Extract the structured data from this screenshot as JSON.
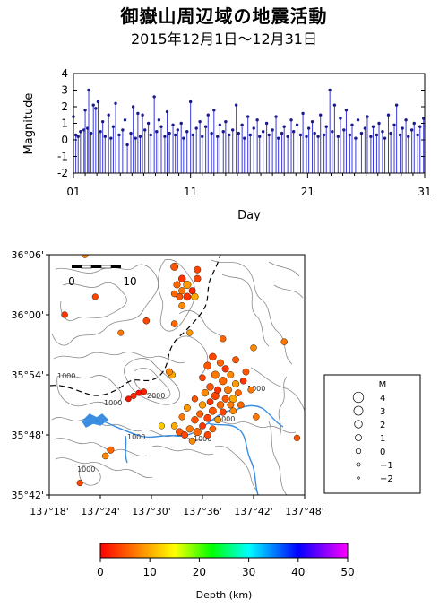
{
  "title": "御嶽山周辺域の地震活動",
  "subtitle": "2015年12月1日～12月31日",
  "chart_data": {
    "type": "bar",
    "ylabel": "Magnitude",
    "xlabel": "Day",
    "xlim": [
      1,
      31
    ],
    "ylim": [
      -2,
      4
    ],
    "y_ticks": [
      "-2",
      "-1",
      "0",
      "1",
      "2",
      "3",
      "4"
    ],
    "x_ticks": [
      "01",
      "11",
      "21",
      "31"
    ],
    "events": [
      {
        "day": 1.0,
        "mag": 1.4
      },
      {
        "day": 1.2,
        "mag": 0.3
      },
      {
        "day": 1.4,
        "mag": 0.2
      },
      {
        "day": 1.6,
        "mag": 0.5
      },
      {
        "day": 1.9,
        "mag": 0.6
      },
      {
        "day": 2.0,
        "mag": 1.8
      },
      {
        "day": 2.2,
        "mag": 0.7
      },
      {
        "day": 2.3,
        "mag": 3.0
      },
      {
        "day": 2.5,
        "mag": 0.4
      },
      {
        "day": 2.7,
        "mag": 2.1
      },
      {
        "day": 2.9,
        "mag": 1.9
      },
      {
        "day": 3.1,
        "mag": 2.3
      },
      {
        "day": 3.3,
        "mag": 0.5
      },
      {
        "day": 3.5,
        "mag": 1.1
      },
      {
        "day": 3.7,
        "mag": 0.2
      },
      {
        "day": 4.0,
        "mag": 1.5
      },
      {
        "day": 4.2,
        "mag": 0.1
      },
      {
        "day": 4.4,
        "mag": 0.8
      },
      {
        "day": 4.6,
        "mag": 2.2
      },
      {
        "day": 4.9,
        "mag": 0.3
      },
      {
        "day": 5.2,
        "mag": 0.6
      },
      {
        "day": 5.4,
        "mag": 1.2
      },
      {
        "day": 5.6,
        "mag": -0.3
      },
      {
        "day": 5.9,
        "mag": 0.4
      },
      {
        "day": 6.1,
        "mag": 2.0
      },
      {
        "day": 6.3,
        "mag": 0.1
      },
      {
        "day": 6.5,
        "mag": 1.6
      },
      {
        "day": 6.7,
        "mag": 0.2
      },
      {
        "day": 6.9,
        "mag": 1.5
      },
      {
        "day": 7.1,
        "mag": 0.6
      },
      {
        "day": 7.4,
        "mag": 1.0
      },
      {
        "day": 7.6,
        "mag": 0.3
      },
      {
        "day": 7.9,
        "mag": 2.6
      },
      {
        "day": 8.1,
        "mag": 0.5
      },
      {
        "day": 8.3,
        "mag": 1.2
      },
      {
        "day": 8.5,
        "mag": 0.8
      },
      {
        "day": 8.8,
        "mag": 0.2
      },
      {
        "day": 9.0,
        "mag": 1.7
      },
      {
        "day": 9.2,
        "mag": 0.4
      },
      {
        "day": 9.5,
        "mag": 0.9
      },
      {
        "day": 9.7,
        "mag": 0.3
      },
      {
        "day": 9.9,
        "mag": 0.6
      },
      {
        "day": 10.2,
        "mag": 1.0
      },
      {
        "day": 10.4,
        "mag": 0.1
      },
      {
        "day": 10.7,
        "mag": 0.5
      },
      {
        "day": 11.0,
        "mag": 2.3
      },
      {
        "day": 11.2,
        "mag": 0.3
      },
      {
        "day": 11.5,
        "mag": 0.7
      },
      {
        "day": 11.8,
        "mag": 1.1
      },
      {
        "day": 12.0,
        "mag": 0.2
      },
      {
        "day": 12.3,
        "mag": 0.8
      },
      {
        "day": 12.5,
        "mag": 1.5
      },
      {
        "day": 12.8,
        "mag": 0.4
      },
      {
        "day": 13.0,
        "mag": 1.8
      },
      {
        "day": 13.3,
        "mag": 0.2
      },
      {
        "day": 13.5,
        "mag": 0.9
      },
      {
        "day": 13.8,
        "mag": 0.5
      },
      {
        "day": 14.0,
        "mag": 1.1
      },
      {
        "day": 14.3,
        "mag": 0.3
      },
      {
        "day": 14.6,
        "mag": 0.6
      },
      {
        "day": 14.9,
        "mag": 2.1
      },
      {
        "day": 15.1,
        "mag": 0.4
      },
      {
        "day": 15.4,
        "mag": 0.9
      },
      {
        "day": 15.6,
        "mag": 0.1
      },
      {
        "day": 15.9,
        "mag": 1.4
      },
      {
        "day": 16.1,
        "mag": 0.3
      },
      {
        "day": 16.4,
        "mag": 0.7
      },
      {
        "day": 16.7,
        "mag": 1.2
      },
      {
        "day": 16.9,
        "mag": 0.2
      },
      {
        "day": 17.2,
        "mag": 0.5
      },
      {
        "day": 17.5,
        "mag": 1.0
      },
      {
        "day": 17.7,
        "mag": 0.3
      },
      {
        "day": 18.0,
        "mag": 0.6
      },
      {
        "day": 18.3,
        "mag": 1.4
      },
      {
        "day": 18.5,
        "mag": 0.1
      },
      {
        "day": 18.8,
        "mag": 0.4
      },
      {
        "day": 19.0,
        "mag": 0.8
      },
      {
        "day": 19.3,
        "mag": 0.2
      },
      {
        "day": 19.6,
        "mag": 1.2
      },
      {
        "day": 19.8,
        "mag": 0.5
      },
      {
        "day": 20.1,
        "mag": 0.9
      },
      {
        "day": 20.4,
        "mag": 0.3
      },
      {
        "day": 20.6,
        "mag": 1.6
      },
      {
        "day": 20.9,
        "mag": 0.2
      },
      {
        "day": 21.1,
        "mag": 0.7
      },
      {
        "day": 21.4,
        "mag": 1.1
      },
      {
        "day": 21.6,
        "mag": 0.4
      },
      {
        "day": 21.9,
        "mag": 0.2
      },
      {
        "day": 22.1,
        "mag": 1.5
      },
      {
        "day": 22.4,
        "mag": 0.3
      },
      {
        "day": 22.6,
        "mag": 0.8
      },
      {
        "day": 22.9,
        "mag": 3.0
      },
      {
        "day": 23.1,
        "mag": 0.5
      },
      {
        "day": 23.3,
        "mag": 2.1
      },
      {
        "day": 23.6,
        "mag": 0.2
      },
      {
        "day": 23.8,
        "mag": 1.3
      },
      {
        "day": 24.1,
        "mag": 0.6
      },
      {
        "day": 24.3,
        "mag": 1.8
      },
      {
        "day": 24.6,
        "mag": 0.3
      },
      {
        "day": 24.8,
        "mag": 0.9
      },
      {
        "day": 25.1,
        "mag": 0.1
      },
      {
        "day": 25.3,
        "mag": 1.2
      },
      {
        "day": 25.6,
        "mag": 0.4
      },
      {
        "day": 25.9,
        "mag": 0.7
      },
      {
        "day": 26.1,
        "mag": 1.4
      },
      {
        "day": 26.4,
        "mag": 0.2
      },
      {
        "day": 26.6,
        "mag": 0.8
      },
      {
        "day": 26.9,
        "mag": 0.3
      },
      {
        "day": 27.1,
        "mag": 1.0
      },
      {
        "day": 27.4,
        "mag": 0.5
      },
      {
        "day": 27.6,
        "mag": 0.1
      },
      {
        "day": 27.9,
        "mag": 1.5
      },
      {
        "day": 28.1,
        "mag": 0.4
      },
      {
        "day": 28.4,
        "mag": 0.9
      },
      {
        "day": 28.6,
        "mag": 2.1
      },
      {
        "day": 28.9,
        "mag": 0.3
      },
      {
        "day": 29.1,
        "mag": 0.7
      },
      {
        "day": 29.4,
        "mag": 1.2
      },
      {
        "day": 29.6,
        "mag": 0.2
      },
      {
        "day": 29.9,
        "mag": 0.6
      },
      {
        "day": 30.1,
        "mag": 1.0
      },
      {
        "day": 30.4,
        "mag": 0.3
      },
      {
        "day": 30.6,
        "mag": 0.8
      },
      {
        "day": 30.9,
        "mag": 1.3
      }
    ]
  },
  "map": {
    "lat_labels": [
      "36°06'",
      "36°00'",
      "35°54'",
      "35°48'",
      "35°42'"
    ],
    "lon_labels": [
      "137°18'",
      "137°24'",
      "137°30'",
      "137°36'",
      "137°42'",
      "137°48'"
    ],
    "contour_labels": [
      "1000",
      "1000",
      "2000",
      "1000",
      "1000",
      "1000",
      "1000",
      "1000"
    ],
    "scale_labels": [
      "0",
      "10"
    ],
    "water_color": "#3a8de0",
    "boundary_color": "#000000",
    "contour_color": "#8a8a8a",
    "events": [
      {
        "lon": 137.37,
        "lat": 36.1,
        "mag": 1.0,
        "depth": 8
      },
      {
        "lon": 137.39,
        "lat": 36.03,
        "mag": 0.7,
        "depth": 4
      },
      {
        "lon": 137.545,
        "lat": 36.08,
        "mag": 1.9,
        "depth": 5
      },
      {
        "lon": 137.56,
        "lat": 36.06,
        "mag": 1.6,
        "depth": 3
      },
      {
        "lon": 137.55,
        "lat": 36.05,
        "mag": 1.3,
        "depth": 6
      },
      {
        "lon": 137.57,
        "lat": 36.05,
        "mag": 2.0,
        "depth": 9
      },
      {
        "lon": 137.58,
        "lat": 36.04,
        "mag": 1.2,
        "depth": 2
      },
      {
        "lon": 137.56,
        "lat": 36.04,
        "mag": 1.4,
        "depth": 7
      },
      {
        "lon": 137.59,
        "lat": 36.06,
        "mag": 1.5,
        "depth": 4
      },
      {
        "lon": 137.555,
        "lat": 36.03,
        "mag": 1.1,
        "depth": 5
      },
      {
        "lon": 137.57,
        "lat": 36.03,
        "mag": 1.7,
        "depth": 3
      },
      {
        "lon": 137.585,
        "lat": 36.03,
        "mag": 1.4,
        "depth": 10
      },
      {
        "lon": 137.545,
        "lat": 36.035,
        "mag": 1.0,
        "depth": 6
      },
      {
        "lon": 137.59,
        "lat": 36.075,
        "mag": 1.3,
        "depth": 4
      },
      {
        "lon": 137.56,
        "lat": 36.015,
        "mag": 1.2,
        "depth": 8
      },
      {
        "lon": 137.33,
        "lat": 36.0,
        "mag": 0.9,
        "depth": 3
      },
      {
        "lon": 137.545,
        "lat": 35.985,
        "mag": 1.0,
        "depth": 6
      },
      {
        "lon": 137.575,
        "lat": 35.97,
        "mag": 0.8,
        "depth": 9
      },
      {
        "lon": 137.76,
        "lat": 35.955,
        "mag": 0.9,
        "depth": 7
      },
      {
        "lon": 137.535,
        "lat": 35.905,
        "mag": 1.2,
        "depth": 8
      },
      {
        "lon": 137.54,
        "lat": 35.9,
        "mag": 1.5,
        "depth": 10
      },
      {
        "lon": 137.62,
        "lat": 35.93,
        "mag": 1.6,
        "depth": 4
      },
      {
        "lon": 137.635,
        "lat": 35.92,
        "mag": 1.3,
        "depth": 6
      },
      {
        "lon": 137.61,
        "lat": 35.915,
        "mag": 1.8,
        "depth": 5
      },
      {
        "lon": 137.645,
        "lat": 35.91,
        "mag": 1.4,
        "depth": 3
      },
      {
        "lon": 137.625,
        "lat": 35.9,
        "mag": 1.9,
        "depth": 7
      },
      {
        "lon": 137.655,
        "lat": 35.9,
        "mag": 1.2,
        "depth": 8
      },
      {
        "lon": 137.6,
        "lat": 35.895,
        "mag": 1.0,
        "depth": 4
      },
      {
        "lon": 137.64,
        "lat": 35.89,
        "mag": 2.1,
        "depth": 6
      },
      {
        "lon": 137.665,
        "lat": 35.885,
        "mag": 1.4,
        "depth": 9
      },
      {
        "lon": 137.615,
        "lat": 35.88,
        "mag": 1.6,
        "depth": 5
      },
      {
        "lon": 137.63,
        "lat": 35.875,
        "mag": 1.3,
        "depth": 3
      },
      {
        "lon": 137.65,
        "lat": 35.875,
        "mag": 1.8,
        "depth": 7
      },
      {
        "lon": 137.67,
        "lat": 35.87,
        "mag": 1.1,
        "depth": 6
      },
      {
        "lon": 137.605,
        "lat": 35.87,
        "mag": 1.5,
        "depth": 8
      },
      {
        "lon": 137.625,
        "lat": 35.865,
        "mag": 2.0,
        "depth": 4
      },
      {
        "lon": 137.645,
        "lat": 35.86,
        "mag": 1.3,
        "depth": 5
      },
      {
        "lon": 137.66,
        "lat": 35.86,
        "mag": 1.7,
        "depth": 10
      },
      {
        "lon": 137.615,
        "lat": 35.855,
        "mag": 1.1,
        "depth": 3
      },
      {
        "lon": 137.635,
        "lat": 35.85,
        "mag": 1.6,
        "depth": 6
      },
      {
        "lon": 137.655,
        "lat": 35.85,
        "mag": 1.2,
        "depth": 7
      },
      {
        "lon": 137.6,
        "lat": 35.85,
        "mag": 1.4,
        "depth": 9
      },
      {
        "lon": 137.62,
        "lat": 35.84,
        "mag": 1.8,
        "depth": 5
      },
      {
        "lon": 137.64,
        "lat": 35.838,
        "mag": 1.3,
        "depth": 4
      },
      {
        "lon": 137.66,
        "lat": 35.84,
        "mag": 1.0,
        "depth": 8
      },
      {
        "lon": 137.675,
        "lat": 35.85,
        "mag": 1.2,
        "depth": 6
      },
      {
        "lon": 137.68,
        "lat": 35.89,
        "mag": 1.0,
        "depth": 3
      },
      {
        "lon": 137.695,
        "lat": 35.875,
        "mag": 0.9,
        "depth": 7
      },
      {
        "lon": 137.685,
        "lat": 35.905,
        "mag": 1.1,
        "depth": 5
      },
      {
        "lon": 137.595,
        "lat": 35.835,
        "mag": 1.3,
        "depth": 6
      },
      {
        "lon": 137.61,
        "lat": 35.828,
        "mag": 1.7,
        "depth": 4
      },
      {
        "lon": 137.63,
        "lat": 35.825,
        "mag": 1.2,
        "depth": 9
      },
      {
        "lon": 137.585,
        "lat": 35.825,
        "mag": 1.5,
        "depth": 5
      },
      {
        "lon": 137.6,
        "lat": 35.815,
        "mag": 1.0,
        "depth": 3
      },
      {
        "lon": 137.575,
        "lat": 35.81,
        "mag": 1.4,
        "depth": 7
      },
      {
        "lon": 137.59,
        "lat": 35.805,
        "mag": 2.0,
        "depth": 6
      },
      {
        "lon": 137.565,
        "lat": 35.8,
        "mag": 1.2,
        "depth": 4
      },
      {
        "lon": 137.58,
        "lat": 35.79,
        "mag": 1.1,
        "depth": 8
      },
      {
        "lon": 137.555,
        "lat": 35.805,
        "mag": 1.6,
        "depth": 5
      },
      {
        "lon": 137.545,
        "lat": 35.815,
        "mag": 1.0,
        "depth": 10
      },
      {
        "lon": 137.62,
        "lat": 35.81,
        "mag": 1.1,
        "depth": 6
      },
      {
        "lon": 137.61,
        "lat": 35.8,
        "mag": 1.3,
        "depth": 4
      },
      {
        "lon": 137.56,
        "lat": 35.83,
        "mag": 0.9,
        "depth": 7
      },
      {
        "lon": 137.57,
        "lat": 35.845,
        "mag": 1.2,
        "depth": 9
      },
      {
        "lon": 137.585,
        "lat": 35.86,
        "mag": 0.8,
        "depth": 5
      },
      {
        "lon": 137.465,
        "lat": 35.865,
        "mag": 0.6,
        "depth": 2
      },
      {
        "lon": 137.475,
        "lat": 35.87,
        "mag": 0.5,
        "depth": 1
      },
      {
        "lon": 137.485,
        "lat": 35.872,
        "mag": 0.7,
        "depth": 2
      },
      {
        "lon": 137.455,
        "lat": 35.86,
        "mag": 0.5,
        "depth": 1
      },
      {
        "lon": 137.52,
        "lat": 35.815,
        "mag": 0.7,
        "depth": 12
      },
      {
        "lon": 137.42,
        "lat": 35.775,
        "mag": 1.3,
        "depth": 6
      },
      {
        "lon": 137.41,
        "lat": 35.765,
        "mag": 1.0,
        "depth": 8
      },
      {
        "lon": 137.785,
        "lat": 35.795,
        "mag": 0.8,
        "depth": 5
      },
      {
        "lon": 137.705,
        "lat": 35.83,
        "mag": 0.9,
        "depth": 7
      },
      {
        "lon": 137.36,
        "lat": 35.72,
        "mag": 0.7,
        "depth": 4
      },
      {
        "lon": 137.7,
        "lat": 35.945,
        "mag": 0.9,
        "depth": 8
      },
      {
        "lon": 137.64,
        "lat": 35.96,
        "mag": 0.8,
        "depth": 6
      },
      {
        "lon": 137.665,
        "lat": 35.925,
        "mag": 1.2,
        "depth": 5
      },
      {
        "lon": 137.49,
        "lat": 35.99,
        "mag": 1.0,
        "depth": 4
      },
      {
        "lon": 137.44,
        "lat": 35.97,
        "mag": 0.6,
        "depth": 7
      }
    ]
  },
  "legend": {
    "title": "M",
    "labels": [
      "4",
      "3",
      "2",
      "1",
      "0",
      "−1",
      "−2"
    ],
    "mags": [
      4,
      3,
      2,
      1,
      0,
      -1,
      -2
    ]
  },
  "colorbar": {
    "label": "Depth (km)",
    "ticks": [
      "0",
      "10",
      "20",
      "30",
      "40",
      "50"
    ],
    "range": [
      0,
      50
    ]
  }
}
